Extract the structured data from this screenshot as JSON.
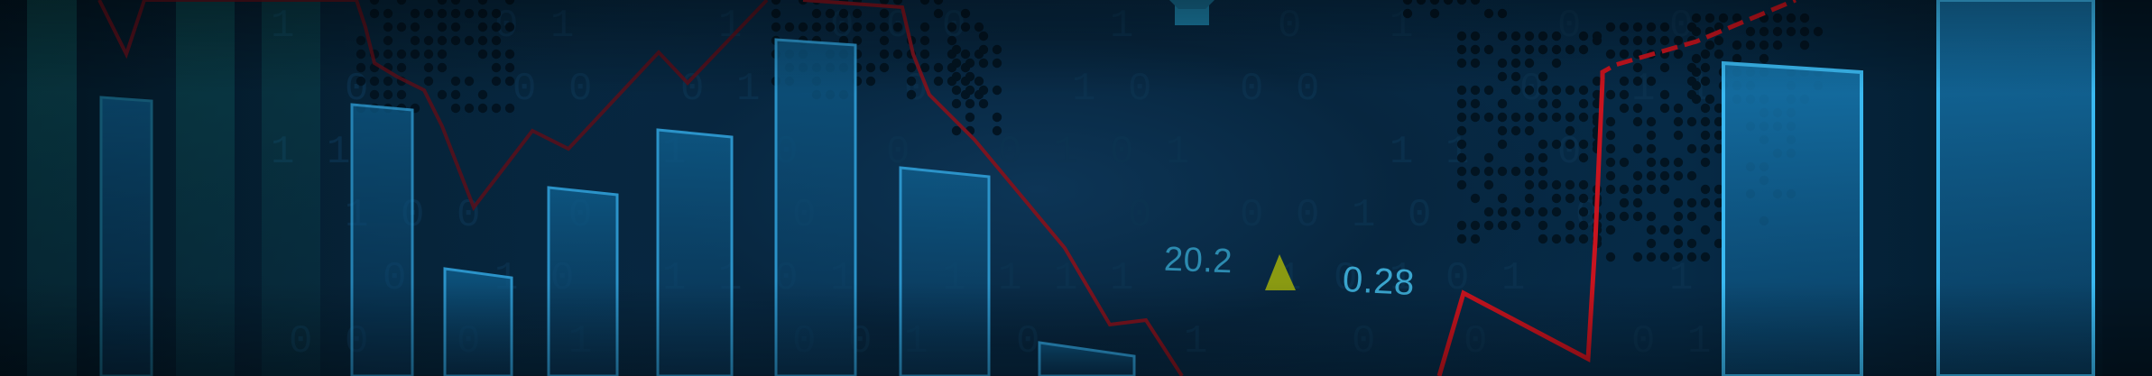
{
  "readouts": {
    "value_left": "20.2",
    "value_right": "0.28"
  },
  "colors": {
    "background": "#062a46",
    "bar_fill": "#0b4a72",
    "bar_stroke": "#3ab0e6",
    "trend_line": "#b3121c",
    "indicator_triangle": "#8a9a12",
    "digits": "#0c3350",
    "world_dots": "#02121e"
  },
  "icons": [
    "up-triangle-icon",
    "marker-icon"
  ]
}
